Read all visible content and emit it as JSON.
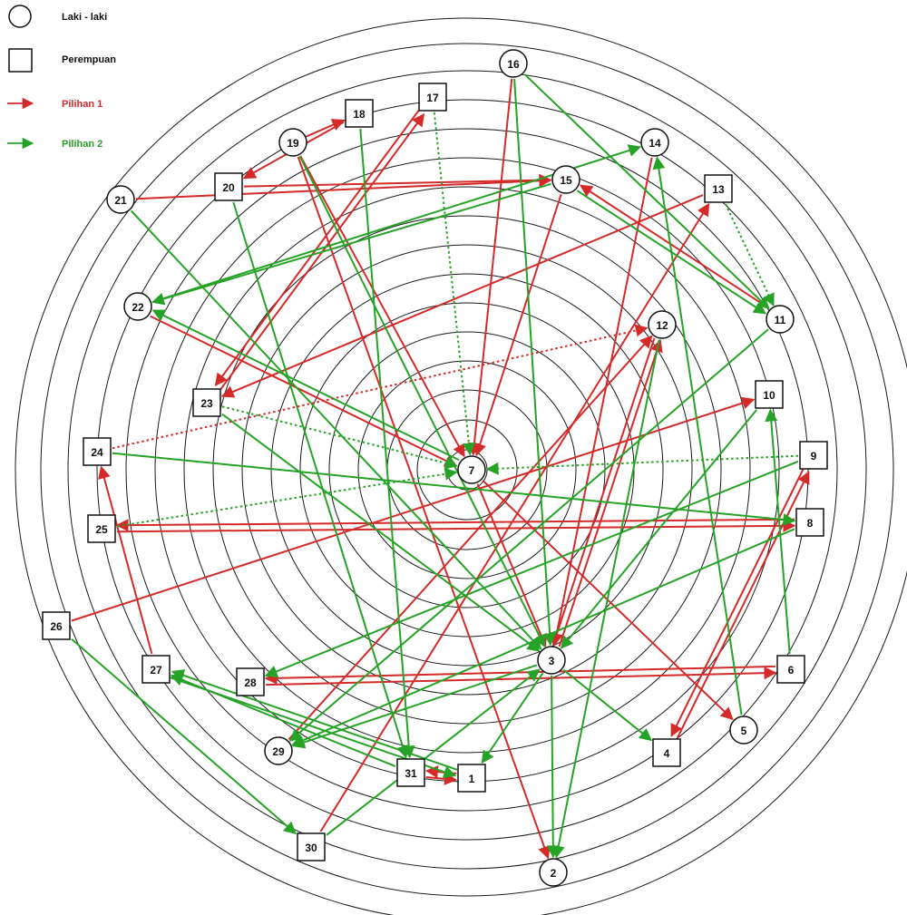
{
  "legend": {
    "male": "Laki - laki",
    "female": "Perempuan",
    "choice1": "Pilihan 1",
    "choice2": "Pilihan 2"
  },
  "colors": {
    "choice1": "#d42a2a",
    "choice2": "#26a326",
    "ring": "#1a1a1a",
    "node_stroke": "#111111"
  },
  "nodes": [
    {
      "id": "1",
      "label": "1",
      "gender": "female"
    },
    {
      "id": "2",
      "label": "2",
      "gender": "male"
    },
    {
      "id": "3",
      "label": "3",
      "gender": "male"
    },
    {
      "id": "4",
      "label": "4",
      "gender": "female"
    },
    {
      "id": "5",
      "label": "5",
      "gender": "male"
    },
    {
      "id": "6",
      "label": "6",
      "gender": "female"
    },
    {
      "id": "7",
      "label": "7",
      "gender": "male"
    },
    {
      "id": "8",
      "label": "8",
      "gender": "female"
    },
    {
      "id": "9",
      "label": "9",
      "gender": "female"
    },
    {
      "id": "10",
      "label": "10",
      "gender": "female"
    },
    {
      "id": "11",
      "label": "11",
      "gender": "male"
    },
    {
      "id": "12",
      "label": "12",
      "gender": "male"
    },
    {
      "id": "13",
      "label": "13",
      "gender": "female"
    },
    {
      "id": "14",
      "label": "14",
      "gender": "male"
    },
    {
      "id": "15",
      "label": "15",
      "gender": "male"
    },
    {
      "id": "16",
      "label": "16",
      "gender": "male"
    },
    {
      "id": "17",
      "label": "17",
      "gender": "female"
    },
    {
      "id": "18",
      "label": "18",
      "gender": "female"
    },
    {
      "id": "19",
      "label": "19",
      "gender": "male"
    },
    {
      "id": "20",
      "label": "20",
      "gender": "female"
    },
    {
      "id": "21",
      "label": "21",
      "gender": "male"
    },
    {
      "id": "22",
      "label": "22",
      "gender": "male"
    },
    {
      "id": "23",
      "label": "23",
      "gender": "female"
    },
    {
      "id": "24",
      "label": "24",
      "gender": "female"
    },
    {
      "id": "25",
      "label": "25",
      "gender": "female"
    },
    {
      "id": "26",
      "label": "26",
      "gender": "female"
    },
    {
      "id": "27",
      "label": "27",
      "gender": "female"
    },
    {
      "id": "28",
      "label": "28",
      "gender": "female"
    },
    {
      "id": "29",
      "label": "29",
      "gender": "male"
    },
    {
      "id": "30",
      "label": "30",
      "gender": "female"
    },
    {
      "id": "31",
      "label": "31",
      "gender": "female"
    }
  ],
  "edges": [
    {
      "from": "19",
      "to": "18",
      "choice": 1
    },
    {
      "from": "18",
      "to": "20",
      "choice": 1
    },
    {
      "from": "21",
      "to": "15",
      "choice": 1
    },
    {
      "from": "20",
      "to": "15",
      "choice": 1
    },
    {
      "from": "19",
      "to": "7",
      "choice": 1
    },
    {
      "from": "19",
      "to": "2",
      "choice": 1
    },
    {
      "from": "23",
      "to": "17",
      "choice": 1
    },
    {
      "from": "17",
      "to": "23",
      "choice": 1
    },
    {
      "from": "16",
      "to": "7",
      "choice": 1
    },
    {
      "from": "15",
      "to": "7",
      "choice": 1
    },
    {
      "from": "11",
      "to": "15",
      "choice": 1
    },
    {
      "from": "13",
      "to": "23",
      "choice": 1
    },
    {
      "from": "22",
      "to": "7",
      "choice": 1
    },
    {
      "from": "14",
      "to": "3",
      "choice": 1
    },
    {
      "from": "3",
      "to": "12",
      "choice": 1
    },
    {
      "from": "12",
      "to": "3",
      "choice": 1
    },
    {
      "from": "29",
      "to": "12",
      "choice": 1
    },
    {
      "from": "26",
      "to": "10",
      "choice": 1
    },
    {
      "from": "30",
      "to": "13",
      "choice": 1
    },
    {
      "from": "25",
      "to": "8",
      "choice": 1
    },
    {
      "from": "8",
      "to": "25",
      "choice": 1
    },
    {
      "from": "28",
      "to": "6",
      "choice": 1
    },
    {
      "from": "6",
      "to": "28",
      "choice": 1
    },
    {
      "from": "27",
      "to": "24",
      "choice": 1
    },
    {
      "from": "7",
      "to": "5",
      "choice": 1
    },
    {
      "from": "7",
      "to": "3",
      "choice": 1
    },
    {
      "from": "4",
      "to": "9",
      "choice": 1
    },
    {
      "from": "9",
      "to": "4",
      "choice": 1
    },
    {
      "from": "31",
      "to": "1",
      "choice": 1
    },
    {
      "from": "1",
      "to": "31",
      "choice": 1
    },
    {
      "from": "16",
      "to": "11",
      "choice": 2
    },
    {
      "from": "15",
      "to": "11",
      "choice": 2
    },
    {
      "from": "21",
      "to": "3",
      "choice": 2
    },
    {
      "from": "16",
      "to": "3",
      "choice": 2
    },
    {
      "from": "22",
      "to": "14",
      "choice": 2
    },
    {
      "from": "15",
      "to": "22",
      "choice": 2
    },
    {
      "from": "18",
      "to": "31",
      "choice": 2
    },
    {
      "from": "20",
      "to": "31",
      "choice": 2
    },
    {
      "from": "19",
      "to": "3",
      "choice": 2
    },
    {
      "from": "7",
      "to": "22",
      "choice": 2
    },
    {
      "from": "5",
      "to": "14",
      "choice": 2
    },
    {
      "from": "12",
      "to": "2",
      "choice": 2
    },
    {
      "from": "11",
      "to": "29",
      "choice": 2
    },
    {
      "from": "10",
      "to": "3",
      "choice": 2
    },
    {
      "from": "6",
      "to": "10",
      "choice": 2
    },
    {
      "from": "24",
      "to": "8",
      "choice": 2
    },
    {
      "from": "23",
      "to": "3",
      "choice": 2
    },
    {
      "from": "9",
      "to": "28",
      "choice": 2
    },
    {
      "from": "8",
      "to": "29",
      "choice": 2
    },
    {
      "from": "3",
      "to": "29",
      "choice": 2
    },
    {
      "from": "3",
      "to": "2",
      "choice": 2
    },
    {
      "from": "3",
      "to": "4",
      "choice": 2
    },
    {
      "from": "3",
      "to": "1",
      "choice": 2
    },
    {
      "from": "26",
      "to": "30",
      "choice": 2
    },
    {
      "from": "30",
      "to": "3",
      "choice": 2
    },
    {
      "from": "31",
      "to": "27",
      "choice": 2
    },
    {
      "from": "1",
      "to": "27",
      "choice": 2
    },
    {
      "from": "27",
      "to": "1",
      "choice": 2
    },
    {
      "from": "17",
      "to": "7",
      "choice": 2,
      "dotted": true
    },
    {
      "from": "13",
      "to": "11",
      "choice": 2,
      "dotted": true
    },
    {
      "from": "23",
      "to": "7",
      "choice": 2,
      "dotted": true
    },
    {
      "from": "9",
      "to": "7",
      "choice": 2,
      "dotted": true
    },
    {
      "from": "25",
      "to": "7",
      "choice": 2,
      "dotted": true
    },
    {
      "from": "24",
      "to": "12",
      "choice": 1,
      "dotted": true
    }
  ]
}
